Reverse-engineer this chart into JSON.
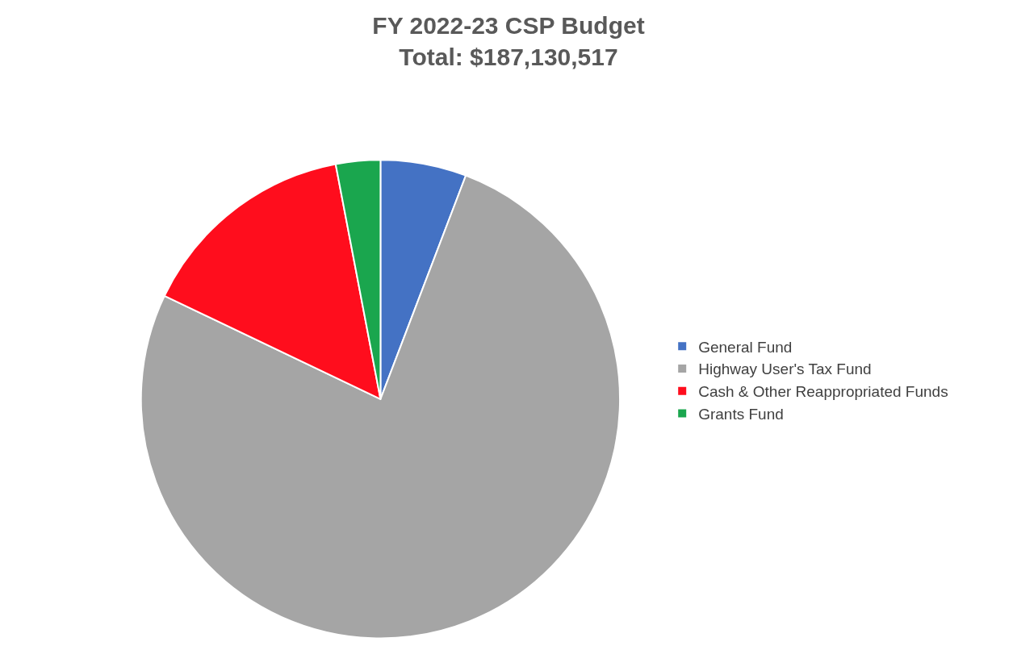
{
  "chart_data": {
    "type": "pie",
    "title": "FY 2022-23 CSP Budget\nTotal: $187,130,517",
    "categories": [
      "General Fund",
      "Highway User's Tax Fund",
      "Cash & Other Reappropriated Funds",
      "Grants Fund"
    ],
    "values": [
      5.8,
      76.3,
      14.9,
      3.0
    ],
    "colors": [
      "#4472c4",
      "#a5a5a5",
      "#ff0d1d",
      "#1aa64e"
    ],
    "legend": "right"
  }
}
